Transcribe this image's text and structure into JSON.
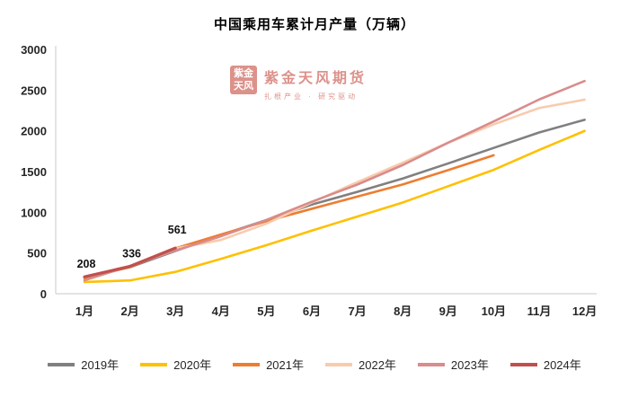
{
  "watermark": {
    "seal_line1": "紫金",
    "seal_line2": "天风",
    "brand": "紫金天风期货",
    "slogan": "扎根产业 · 研究驱动"
  },
  "chart_data": {
    "type": "line",
    "title": "中国乘用车累计月产量（万辆）",
    "x_categories": [
      "1月",
      "2月",
      "3月",
      "4月",
      "5月",
      "6月",
      "7月",
      "8月",
      "9月",
      "10月",
      "11月",
      "12月"
    ],
    "ylabel": "",
    "xlabel": "",
    "ylim": [
      0,
      3000
    ],
    "yticks": [
      0,
      500,
      1000,
      1500,
      2000,
      2500,
      3000
    ],
    "grid": false,
    "legend_position": "bottom",
    "series": [
      {
        "name": "2019年",
        "color": "#808080",
        "values": [
          200,
          325,
          525,
          720,
          905,
          1095,
          1250,
          1415,
          1600,
          1790,
          1980,
          2136
        ]
      },
      {
        "name": "2020年",
        "color": "#FFC000",
        "values": [
          144,
          163,
          268,
          428,
          595,
          775,
          947,
          1120,
          1320,
          1521,
          1765,
          1999
        ]
      },
      {
        "name": "2021年",
        "color": "#ED7D31",
        "values": [
          191,
          327,
          557,
          727,
          891,
          1043,
          1192,
          1342,
          1518,
          1700
        ]
      },
      {
        "name": "2022年",
        "color": "#F8CBAD",
        "values": [
          205,
          340,
          555,
          660,
          860,
          1120,
          1370,
          1610,
          1855,
          2080,
          2280,
          2383
        ]
      },
      {
        "name": "2023年",
        "color": "#D98C8C",
        "values": [
          165,
          340,
          530,
          705,
          905,
          1130,
          1340,
          1580,
          1855,
          2115,
          2385,
          2612
        ]
      },
      {
        "name": "2024年",
        "color": "#C0504D",
        "width": 3.2,
        "values": [
          208,
          336,
          561
        ],
        "data_labels": [
          "208",
          "336",
          "561"
        ]
      }
    ]
  }
}
